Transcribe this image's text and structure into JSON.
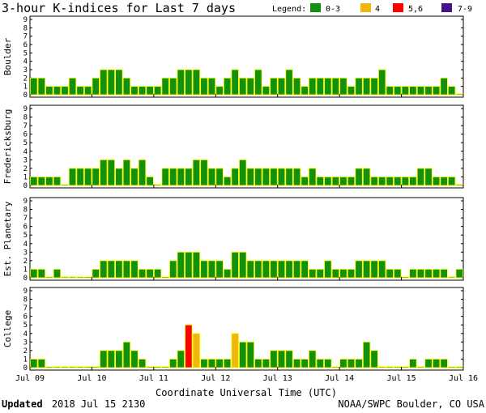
{
  "title": "3-hour K-indices for Last 7 days",
  "legend": {
    "label": "Legend:",
    "items": [
      {
        "label": "0-3",
        "color": "#13900c"
      },
      {
        "label": "4",
        "color": "#f0b612"
      },
      {
        "label": "5,6",
        "color": "#ff0000"
      },
      {
        "label": "7-9",
        "color": "#441488"
      }
    ]
  },
  "colors": {
    "bar_outline": "#ffff00",
    "panel_border": "#000000"
  },
  "footer": {
    "updated_label": "Updated",
    "updated_value": "2018 Jul 15 2130",
    "source": "NOAA/SWPC Boulder, CO USA"
  },
  "chart_data": {
    "type": "bar",
    "title": "3-hour K-indices for Last 7 days",
    "xlabel": "Coordinate Universal Time (UTC)",
    "x_tick_labels": [
      "Jul 09",
      "Jul 10",
      "Jul 11",
      "Jul 12",
      "Jul 13",
      "Jul 14",
      "Jul 15",
      "Jul 16"
    ],
    "y_ticks": [
      "0",
      "1",
      "2",
      "3",
      "4",
      "5",
      "6",
      "7",
      "8",
      "9"
    ],
    "ylim": [
      0,
      9
    ],
    "series": [
      {
        "name": "Boulder",
        "values": [
          2,
          2,
          1,
          1,
          1,
          2,
          1,
          1,
          2,
          3,
          3,
          3,
          2,
          1,
          1,
          1,
          1,
          2,
          2,
          3,
          3,
          3,
          2,
          2,
          1,
          2,
          3,
          2,
          2,
          3,
          1,
          2,
          2,
          3,
          2,
          1,
          2,
          2,
          2,
          2,
          2,
          1,
          2,
          2,
          2,
          3,
          1,
          1,
          1,
          1,
          1,
          1,
          1,
          2,
          1,
          0
        ]
      },
      {
        "name": "Fredericksburg",
        "values": [
          1,
          1,
          1,
          1,
          0,
          2,
          2,
          2,
          2,
          3,
          3,
          2,
          3,
          2,
          3,
          1,
          0,
          2,
          2,
          2,
          2,
          3,
          3,
          2,
          2,
          1,
          2,
          3,
          2,
          2,
          2,
          2,
          2,
          2,
          2,
          1,
          2,
          1,
          1,
          1,
          1,
          1,
          2,
          2,
          1,
          1,
          1,
          1,
          1,
          1,
          2,
          2,
          1,
          1,
          1,
          0
        ]
      },
      {
        "name": "Est. Planetary",
        "values": [
          1,
          1,
          0,
          1,
          0,
          0,
          0,
          0,
          1,
          2,
          2,
          2,
          2,
          2,
          1,
          1,
          1,
          0,
          2,
          3,
          3,
          3,
          2,
          2,
          2,
          1,
          3,
          3,
          2,
          2,
          2,
          2,
          2,
          2,
          2,
          2,
          1,
          1,
          2,
          1,
          1,
          1,
          2,
          2,
          2,
          2,
          1,
          1,
          0,
          1,
          1,
          1,
          1,
          1,
          0,
          1
        ]
      },
      {
        "name": "College",
        "values": [
          1,
          1,
          0,
          0,
          0,
          0,
          0,
          0,
          0,
          2,
          2,
          2,
          3,
          2,
          1,
          0,
          0,
          0,
          1,
          2,
          5,
          4,
          1,
          1,
          1,
          1,
          4,
          3,
          3,
          1,
          1,
          2,
          2,
          2,
          1,
          1,
          2,
          1,
          1,
          0,
          1,
          1,
          1,
          3,
          2,
          0,
          0,
          0,
          0,
          1,
          0,
          1,
          1,
          1,
          0,
          0
        ]
      }
    ]
  }
}
